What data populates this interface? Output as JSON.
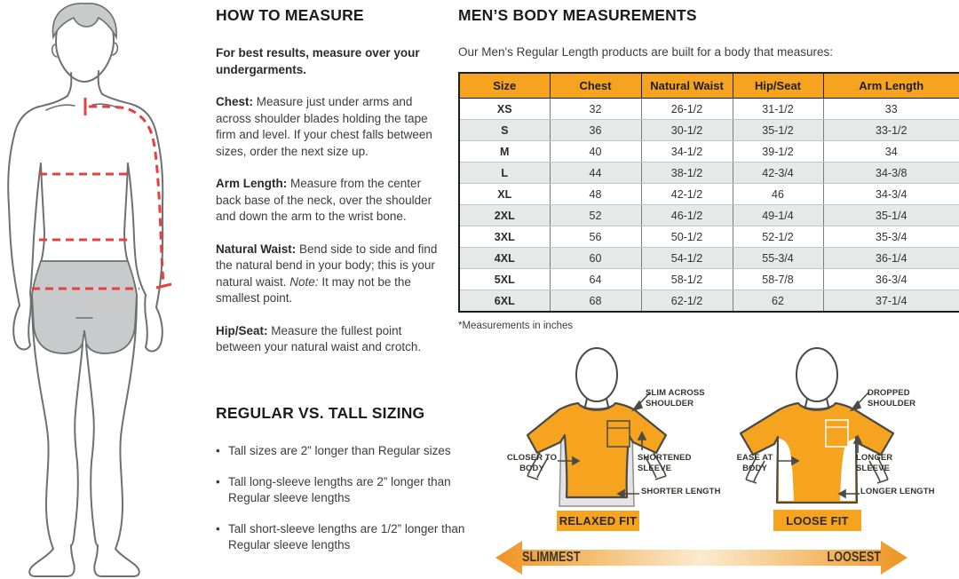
{
  "colors": {
    "gold": "#F6A41F",
    "gold_deep": "#EE9322",
    "table_alt_row": "#E7E8E8",
    "red_dash": "#E8403E",
    "figure_line": "#6E6F71",
    "figure_gray": "#C9CACB",
    "text_dark": "#231F20"
  },
  "how_to_measure": {
    "title": "HOW TO MEASURE",
    "intro": "For best results, measure over your undergarments.",
    "steps": [
      {
        "lead": "Chest:",
        "body": " Measure just under arms and across shoulder blades holding the tape firm and level. If your chest falls between sizes, order the next size up."
      },
      {
        "lead": "Arm Length:",
        "body": " Measure from the center back base of the neck, over the shoulder and down the arm to the wrist bone."
      },
      {
        "lead": "Natural Waist:",
        "body": " Bend side to side and find the natural bend in your body; this is your natural waist. ",
        "note": "Note:",
        "body2": " It may not be the smallest point."
      },
      {
        "lead": "Hip/Seat:",
        "body": " Measure the fullest point between your natural waist and crotch."
      }
    ]
  },
  "regular_vs_tall": {
    "title": "REGULAR VS. TALL SIZING",
    "bullets": [
      "Tall sizes are 2” longer than Regular sizes",
      "Tall long-sleeve lengths are 2” longer than Regular sleeve lengths",
      "Tall short-sleeve lengths are 1/2” longer than Regular sleeve lengths"
    ]
  },
  "measurements": {
    "title": "MEN’S BODY MEASUREMENTS",
    "intro": "Our Men's Regular Length products are built for a body that measures:",
    "footnote": "*Measurements in inches",
    "table": {
      "headers": [
        "Size",
        "Chest",
        "Natural Waist",
        "Hip/Seat",
        "Arm Length"
      ],
      "rows": [
        [
          "XS",
          "32",
          "26-1/2",
          "31-1/2",
          "33"
        ],
        [
          "S",
          "36",
          "30-1/2",
          "35-1/2",
          "33-1/2"
        ],
        [
          "M",
          "40",
          "34-1/2",
          "39-1/2",
          "34"
        ],
        [
          "L",
          "44",
          "38-1/2",
          "42-3/4",
          "34-3/8"
        ],
        [
          "XL",
          "48",
          "42-1/2",
          "46",
          "34-3/4"
        ],
        [
          "2XL",
          "52",
          "46-1/2",
          "49-1/4",
          "35-1/4"
        ],
        [
          "3XL",
          "56",
          "50-1/2",
          "52-1/2",
          "35-3/4"
        ],
        [
          "4XL",
          "60",
          "54-1/2",
          "55-3/4",
          "36-1/4"
        ],
        [
          "5XL",
          "64",
          "58-1/2",
          "58-7/8",
          "36-3/4"
        ],
        [
          "6XL",
          "68",
          "62-1/2",
          "62",
          "37-1/4"
        ]
      ]
    }
  },
  "fit_diagrams": {
    "relaxed": {
      "label": "RELAXED FIT",
      "callouts": {
        "shoulder": "SLIM ACROSS SHOULDER",
        "body": "CLOSER TO BODY",
        "sleeve": "SHORTENED SLEEVE",
        "length": "SHORTER LENGTH"
      }
    },
    "loose": {
      "label": "LOOSE FIT",
      "callouts": {
        "shoulder": "DROPPED SHOULDER",
        "body": "EASE AT BODY",
        "sleeve": "LONGER SLEEVE",
        "length": "LONGER LENGTH"
      }
    },
    "scale": {
      "left": "SLIMMEST",
      "right": "LOOSEST"
    }
  }
}
